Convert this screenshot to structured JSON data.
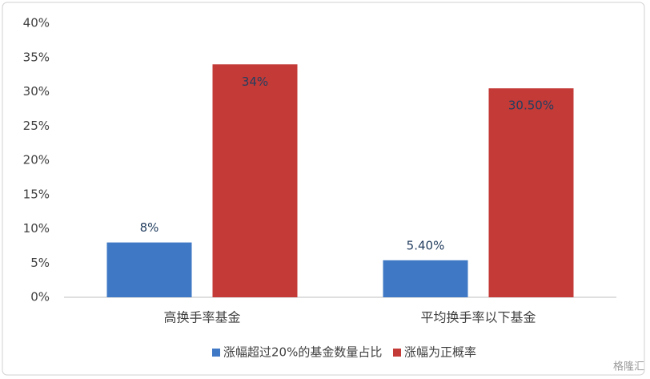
{
  "chart_data": {
    "type": "bar",
    "categories": [
      "高换手率基金",
      "平均换手率以下基金"
    ],
    "series": [
      {
        "name": "涨幅超过20%的基金数量占比",
        "color": "#3f78c4",
        "values": [
          8,
          5.4
        ],
        "value_labels": [
          "8%",
          "5.40%"
        ]
      },
      {
        "name": "涨幅为正概率",
        "color": "#c33a37",
        "values": [
          34,
          30.5
        ],
        "value_labels": [
          "34%",
          "30.50%"
        ]
      }
    ],
    "ylim": [
      0,
      40
    ],
    "yticks": [
      {
        "value": 0,
        "label": "0%"
      },
      {
        "value": 5,
        "label": "5%"
      },
      {
        "value": 10,
        "label": "10%"
      },
      {
        "value": 15,
        "label": "15%"
      },
      {
        "value": 20,
        "label": "20%"
      },
      {
        "value": 25,
        "label": "25%"
      },
      {
        "value": 30,
        "label": "30%"
      },
      {
        "value": 35,
        "label": "35%"
      },
      {
        "value": 40,
        "label": "40%"
      }
    ],
    "grid": false,
    "legend": "bottom",
    "watermark": "格隆汇"
  }
}
